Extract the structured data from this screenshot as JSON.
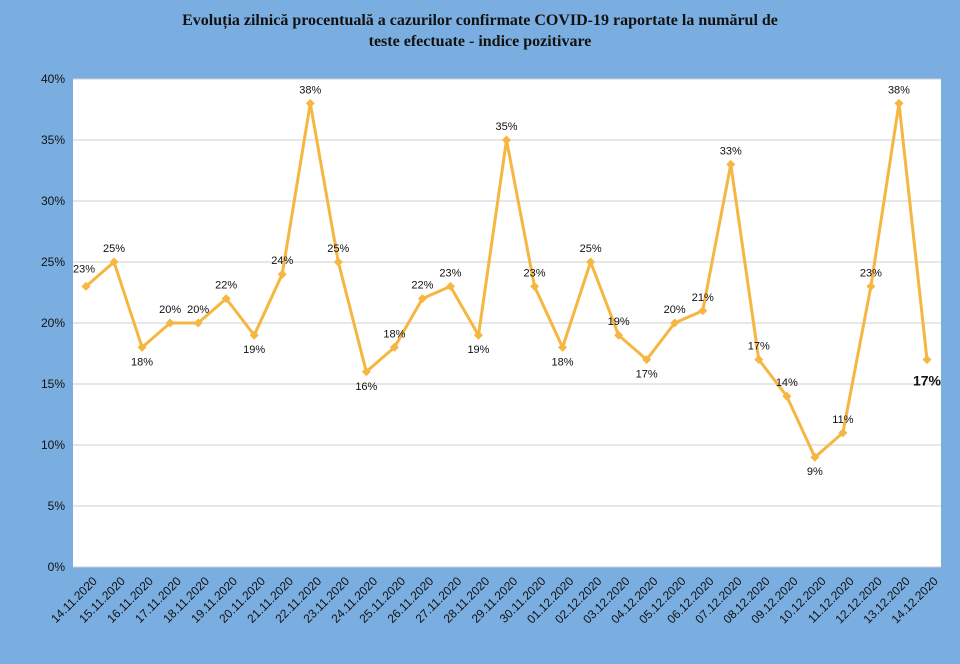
{
  "chart_data": {
    "type": "line",
    "title_lines": [
      "Evoluția zilnică procentuală a cazurilor confirmate COVID-19 raportate la numărul de",
      "teste efectuate - indice pozitivare"
    ],
    "xlabel": "",
    "ylabel": "",
    "ylim": [
      0,
      40
    ],
    "y_ticks": [
      0,
      5,
      10,
      15,
      20,
      25,
      30,
      35,
      40
    ],
    "y_tick_labels": [
      "0%",
      "5%",
      "10%",
      "15%",
      "20%",
      "25%",
      "30%",
      "35%",
      "40%"
    ],
    "grid": true,
    "legend": "none",
    "categories": [
      "14.11.2020",
      "15.11.2020",
      "16.11.2020",
      "17.11.2020",
      "18.11.2020",
      "19.11.2020",
      "20.11.2020",
      "21.11.2020",
      "22.11.2020",
      "23.11.2020",
      "24.11.2020",
      "25.11.2020",
      "26.11.2020",
      "27.11.2020",
      "28.11.2020",
      "29.11.2020",
      "30.11.2020",
      "01.12.2020",
      "02.12.2020",
      "03.12.2020",
      "04.12.2020",
      "05.12.2020",
      "06.12.2020",
      "07.12.2020",
      "08.12.2020",
      "09.12.2020",
      "10.12.2020",
      "11.12.2020",
      "12.12.2020",
      "13.12.2020",
      "14.12.2020"
    ],
    "values": [
      23,
      25,
      18,
      20,
      20,
      22,
      19,
      24,
      38,
      25,
      16,
      18,
      22,
      23,
      19,
      35,
      23,
      18,
      25,
      19,
      17,
      20,
      21,
      33,
      17,
      14,
      9,
      11,
      23,
      38,
      17
    ],
    "data_labels": [
      "23%",
      "25%",
      "18%",
      "20%",
      "20%",
      "22%",
      "19%",
      "24%",
      "38%",
      "25%",
      "16%",
      "18%",
      "22%",
      "23%",
      "19%",
      "35%",
      "23%",
      "18%",
      "25%",
      "19%",
      "17%",
      "20%",
      "21%",
      "33%",
      "17%",
      "14%",
      "9%",
      "11%",
      "23%",
      "38%",
      "17%"
    ],
    "colors": {
      "line": "#f5b642",
      "marker": "#f5b642",
      "last_label": "#e3261f",
      "background": "#7baee0",
      "plot_area": "#ffffff",
      "grid": "#cfcfcf"
    }
  }
}
